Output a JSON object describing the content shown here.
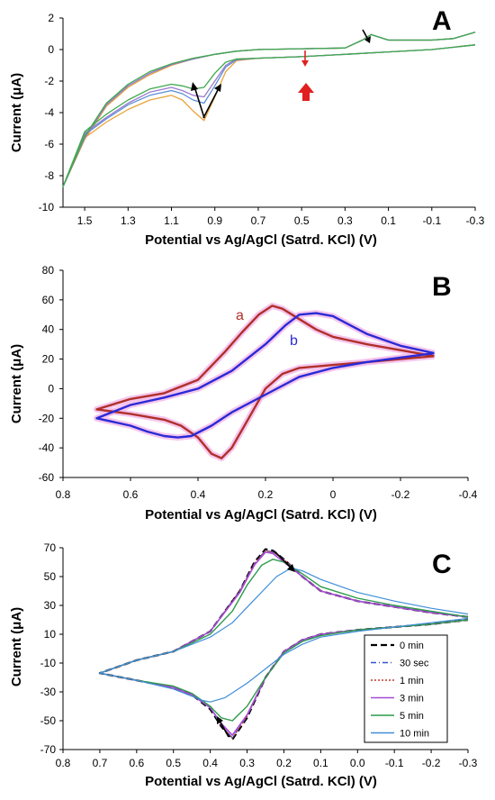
{
  "chart_data": [
    {
      "panel_label": "A",
      "type": "line",
      "xlabel": "Potential vs Ag/AgCl (Satrd. KCl) (V)",
      "ylabel": "Current (μA)",
      "xlim": [
        1.6,
        -0.3
      ],
      "ylim": [
        -10,
        2
      ],
      "x_ticks": [
        1.5,
        1.3,
        1.1,
        0.9,
        0.7,
        0.5,
        0.3,
        0.1,
        -0.1,
        -0.3
      ],
      "x_tick_labels": [
        "1.5",
        "1.3",
        "1.1",
        "0.9",
        "0.7",
        "0.5",
        "0.3",
        "0.1",
        "-0.1",
        "-0.3"
      ],
      "y_ticks": [
        -10,
        -8,
        -6,
        -4,
        -2,
        0,
        2
      ],
      "y_tick_labels": [
        "-10",
        "-8",
        "-6",
        "-4",
        "-2",
        "0",
        "2"
      ],
      "colors": [
        "#e8a33a",
        "#5b8fd6",
        "#9b7ad0",
        "#3fa94b",
        "#6f9c3a"
      ],
      "series": [
        {
          "x": [
            -0.3,
            -0.1,
            0.1,
            0.3,
            0.5,
            0.7,
            0.8,
            0.85,
            0.9,
            0.95,
            1.0,
            1.05,
            1.1,
            1.2,
            1.3,
            1.4,
            1.5,
            1.6,
            1.5,
            1.4,
            1.3,
            1.2,
            1.1,
            1.0,
            0.9,
            0.8,
            0.7,
            0.5,
            0.3,
            0.22,
            0.18,
            0.1,
            -0.1,
            -0.2,
            -0.3
          ],
          "y": [
            0.3,
            0.0,
            -0.15,
            -0.3,
            -0.45,
            -0.55,
            -0.7,
            -1.4,
            -3.0,
            -4.5,
            -3.9,
            -3.2,
            -2.9,
            -3.2,
            -3.8,
            -4.6,
            -5.6,
            -8.7,
            -5.7,
            -3.6,
            -2.4,
            -1.6,
            -1.0,
            -0.6,
            -0.3,
            -0.1,
            0.0,
            0.05,
            0.1,
            0.6,
            0.95,
            0.6,
            0.6,
            0.7,
            1.1
          ]
        },
        {
          "x": [
            -0.3,
            -0.1,
            0.1,
            0.3,
            0.5,
            0.7,
            0.8,
            0.85,
            0.9,
            0.95,
            1.0,
            1.05,
            1.1,
            1.2,
            1.3,
            1.4,
            1.5,
            1.6,
            1.5,
            1.4,
            1.3,
            1.2,
            1.1,
            1.0,
            0.9,
            0.8,
            0.7,
            0.5,
            0.3,
            0.22,
            0.18,
            0.1,
            -0.1,
            -0.2,
            -0.3
          ],
          "y": [
            0.3,
            0.0,
            -0.15,
            -0.3,
            -0.45,
            -0.55,
            -0.65,
            -1.1,
            -2.3,
            -3.4,
            -3.2,
            -2.8,
            -2.6,
            -2.9,
            -3.5,
            -4.4,
            -5.4,
            -8.7,
            -5.6,
            -3.5,
            -2.3,
            -1.5,
            -0.95,
            -0.6,
            -0.3,
            -0.1,
            0.0,
            0.05,
            0.1,
            0.6,
            0.95,
            0.6,
            0.6,
            0.7,
            1.1
          ]
        },
        {
          "x": [
            -0.3,
            -0.1,
            0.1,
            0.3,
            0.5,
            0.7,
            0.8,
            0.85,
            0.9,
            0.95,
            1.0,
            1.05,
            1.1,
            1.2,
            1.3,
            1.4,
            1.5,
            1.6,
            1.5,
            1.4,
            1.3,
            1.2,
            1.1,
            1.0,
            0.9,
            0.8,
            0.7,
            0.5,
            0.3,
            0.22,
            0.18,
            0.1,
            -0.1,
            -0.2,
            -0.3
          ],
          "y": [
            0.3,
            0.0,
            -0.15,
            -0.3,
            -0.45,
            -0.55,
            -0.6,
            -1.0,
            -2.0,
            -3.0,
            -2.9,
            -2.6,
            -2.4,
            -2.7,
            -3.4,
            -4.3,
            -5.3,
            -8.7,
            -5.6,
            -3.5,
            -2.3,
            -1.5,
            -0.95,
            -0.6,
            -0.3,
            -0.1,
            0.0,
            0.05,
            0.1,
            0.6,
            0.95,
            0.6,
            0.6,
            0.7,
            1.1
          ]
        },
        {
          "x": [
            -0.3,
            -0.1,
            0.1,
            0.3,
            0.5,
            0.7,
            0.8,
            0.85,
            0.9,
            0.95,
            1.0,
            1.05,
            1.1,
            1.2,
            1.3,
            1.4,
            1.5,
            1.6,
            1.5,
            1.4,
            1.3,
            1.2,
            1.1,
            1.0,
            0.9,
            0.8,
            0.7,
            0.5,
            0.3,
            0.22,
            0.18,
            0.1,
            -0.1,
            -0.2,
            -0.3
          ],
          "y": [
            0.3,
            0.0,
            -0.15,
            -0.3,
            -0.45,
            -0.55,
            -0.6,
            -0.8,
            -1.5,
            -2.4,
            -2.5,
            -2.3,
            -2.2,
            -2.5,
            -3.2,
            -4.1,
            -5.2,
            -8.7,
            -5.5,
            -3.4,
            -2.2,
            -1.4,
            -0.9,
            -0.55,
            -0.3,
            -0.1,
            0.0,
            0.05,
            0.1,
            0.6,
            0.95,
            0.6,
            0.6,
            0.7,
            1.1
          ]
        }
      ]
    },
    {
      "panel_label": "B",
      "type": "line",
      "xlabel": "Potential vs Ag/AgCl (Satrd. KCl) (V)",
      "ylabel": "Current (μA)",
      "xlim": [
        0.8,
        -0.4
      ],
      "ylim": [
        -60,
        80
      ],
      "x_ticks": [
        0.8,
        0.6,
        0.4,
        0.2,
        0,
        -0.2,
        -0.4
      ],
      "x_tick_labels": [
        "0.8",
        "0.6",
        "0.4",
        "0.2",
        "0",
        "-0.2",
        "-0.4"
      ],
      "y_ticks": [
        -60,
        -40,
        -20,
        0,
        20,
        40,
        60,
        80
      ],
      "y_tick_labels": [
        "-60",
        "-40",
        "-20",
        "0",
        "20",
        "40",
        "60",
        "80"
      ],
      "colors": [
        "#b0302a",
        "#2a2ad6"
      ],
      "halo": "#f3b8e8",
      "series": [
        {
          "name": "a",
          "x": [
            -0.3,
            -0.2,
            -0.1,
            0.0,
            0.05,
            0.1,
            0.15,
            0.18,
            0.22,
            0.27,
            0.32,
            0.4,
            0.5,
            0.6,
            0.7,
            0.6,
            0.5,
            0.45,
            0.4,
            0.36,
            0.33,
            0.3,
            0.25,
            0.2,
            0.15,
            0.1,
            0.0,
            -0.1,
            -0.2,
            -0.3
          ],
          "y": [
            22,
            26,
            30,
            35,
            40,
            47,
            54,
            56,
            50,
            38,
            25,
            6,
            -3,
            -7,
            -14,
            -17,
            -21,
            -25,
            -33,
            -44,
            -47,
            -40,
            -20,
            0,
            10,
            14,
            16,
            18,
            20,
            22
          ]
        },
        {
          "name": "b",
          "x": [
            -0.3,
            -0.2,
            -0.1,
            -0.05,
            0.0,
            0.05,
            0.1,
            0.14,
            0.2,
            0.3,
            0.4,
            0.5,
            0.6,
            0.7,
            0.6,
            0.55,
            0.5,
            0.46,
            0.42,
            0.36,
            0.3,
            0.2,
            0.1,
            0.0,
            -0.1,
            -0.2,
            -0.3
          ],
          "y": [
            24,
            29,
            37,
            43,
            49,
            51,
            50,
            43,
            30,
            12,
            0,
            -6,
            -11,
            -20,
            -25,
            -29,
            -32,
            -33,
            -32,
            -25,
            -16,
            -4,
            8,
            14,
            18,
            21,
            24
          ]
        }
      ]
    },
    {
      "panel_label": "C",
      "type": "line",
      "xlabel": "Potential vs Ag/AgCl (Satrd. KCl) (V)",
      "ylabel": "Current (μA)",
      "xlim": [
        0.8,
        -0.3
      ],
      "ylim": [
        -70,
        70
      ],
      "x_ticks": [
        0.8,
        0.7,
        0.6,
        0.5,
        0.4,
        0.3,
        0.2,
        0.1,
        0.0,
        -0.1,
        -0.2,
        -0.3
      ],
      "x_tick_labels": [
        "0.8",
        "0.7",
        "0.6",
        "0.5",
        "0.4",
        "0.3",
        "0.2",
        "0.1",
        "0.0",
        "-0.1",
        "-0.2",
        "-0.3"
      ],
      "y_ticks": [
        -70,
        -50,
        -30,
        -10,
        10,
        30,
        50,
        70
      ],
      "y_tick_labels": [
        "-70",
        "-50",
        "-30",
        "-10",
        "10",
        "30",
        "50",
        "70"
      ],
      "legend_position": "bottom-right",
      "series": [
        {
          "name": "0 min",
          "color": "#000000",
          "dash": "7,4",
          "width": 2.2,
          "x": [
            -0.3,
            -0.2,
            -0.1,
            0.0,
            0.1,
            0.15,
            0.2,
            0.23,
            0.25,
            0.28,
            0.32,
            0.4,
            0.5,
            0.6,
            0.7,
            0.6,
            0.5,
            0.45,
            0.4,
            0.37,
            0.34,
            0.3,
            0.25,
            0.2,
            0.15,
            0.1,
            0.0,
            -0.1,
            -0.2,
            -0.3
          ],
          "y": [
            22,
            25,
            29,
            33,
            40,
            50,
            62,
            68,
            69,
            60,
            40,
            12,
            -2,
            -8,
            -17,
            -22,
            -27,
            -32,
            -42,
            -54,
            -63,
            -48,
            -20,
            -2,
            6,
            10,
            13,
            15,
            17,
            20
          ]
        },
        {
          "name": "30 sec",
          "color": "#3355cc",
          "dash": "6,3,1,3",
          "width": 1.4,
          "x": [
            -0.3,
            -0.2,
            -0.1,
            0.0,
            0.1,
            0.15,
            0.2,
            0.23,
            0.25,
            0.28,
            0.32,
            0.4,
            0.5,
            0.6,
            0.7,
            0.6,
            0.5,
            0.45,
            0.4,
            0.37,
            0.34,
            0.3,
            0.25,
            0.2,
            0.15,
            0.1,
            0.0,
            -0.1,
            -0.2,
            -0.3
          ],
          "y": [
            22,
            25,
            29,
            33,
            40,
            50,
            62,
            67,
            68,
            59,
            40,
            12,
            -2,
            -8,
            -17,
            -22,
            -27,
            -32,
            -41,
            -53,
            -62,
            -47,
            -20,
            -2,
            6,
            10,
            13,
            15,
            17,
            20
          ]
        },
        {
          "name": "1 min",
          "color": "#c0392b",
          "dash": "2,2",
          "width": 1.2,
          "x": [
            -0.3,
            -0.2,
            -0.1,
            0.0,
            0.1,
            0.15,
            0.2,
            0.23,
            0.25,
            0.28,
            0.32,
            0.4,
            0.5,
            0.6,
            0.7,
            0.6,
            0.5,
            0.45,
            0.4,
            0.37,
            0.34,
            0.3,
            0.25,
            0.2,
            0.15,
            0.1,
            0.0,
            -0.1,
            -0.2,
            -0.3
          ],
          "y": [
            22,
            25,
            29,
            33,
            40,
            50,
            62,
            67,
            68,
            59,
            40,
            12,
            -2,
            -8,
            -17,
            -22,
            -27,
            -32,
            -41,
            -53,
            -62,
            -47,
            -20,
            -2,
            6,
            10,
            13,
            15,
            17,
            20
          ]
        },
        {
          "name": "3 min",
          "color": "#a64ad6",
          "dash": "",
          "width": 1.6,
          "x": [
            -0.3,
            -0.2,
            -0.1,
            0.0,
            0.1,
            0.15,
            0.2,
            0.23,
            0.25,
            0.28,
            0.32,
            0.4,
            0.5,
            0.6,
            0.7,
            0.6,
            0.5,
            0.45,
            0.4,
            0.37,
            0.34,
            0.3,
            0.25,
            0.2,
            0.15,
            0.1,
            0.0,
            -0.1,
            -0.2,
            -0.3
          ],
          "y": [
            22,
            25,
            29,
            33,
            40,
            50,
            60,
            66,
            67,
            58,
            39,
            12,
            -2,
            -8,
            -17,
            -22,
            -27,
            -32,
            -41,
            -52,
            -60,
            -46,
            -20,
            -2,
            6,
            10,
            13,
            15,
            17,
            20
          ]
        },
        {
          "name": "5 min",
          "color": "#2e9c4a",
          "dash": "",
          "width": 1.4,
          "x": [
            -0.3,
            -0.2,
            -0.1,
            0.0,
            0.1,
            0.15,
            0.2,
            0.23,
            0.26,
            0.3,
            0.34,
            0.4,
            0.5,
            0.6,
            0.7,
            0.6,
            0.5,
            0.45,
            0.4,
            0.37,
            0.34,
            0.3,
            0.25,
            0.2,
            0.15,
            0.1,
            0.0,
            -0.1,
            -0.2,
            -0.3
          ],
          "y": [
            22,
            26,
            30,
            35,
            43,
            52,
            60,
            62,
            58,
            44,
            26,
            10,
            -2,
            -8,
            -17,
            -22,
            -26,
            -31,
            -40,
            -48,
            -50,
            -40,
            -20,
            -3,
            5,
            9,
            13,
            15,
            17,
            20
          ]
        },
        {
          "name": "10 min",
          "color": "#3f8ed8",
          "dash": "",
          "width": 1.2,
          "x": [
            -0.3,
            -0.2,
            -0.1,
            0.0,
            0.1,
            0.15,
            0.18,
            0.22,
            0.28,
            0.34,
            0.4,
            0.5,
            0.6,
            0.7,
            0.6,
            0.5,
            0.45,
            0.42,
            0.4,
            0.36,
            0.3,
            0.25,
            0.2,
            0.15,
            0.1,
            0.0,
            -0.1,
            -0.2,
            -0.3
          ],
          "y": [
            24,
            28,
            33,
            39,
            48,
            54,
            56,
            50,
            34,
            18,
            8,
            -2,
            -8,
            -17,
            -22,
            -28,
            -33,
            -36,
            -37,
            -34,
            -24,
            -14,
            -4,
            3,
            8,
            12,
            15,
            18,
            21
          ]
        }
      ]
    }
  ],
  "annotations": {
    "panel_b_label_a": "a",
    "panel_b_label_b": "b"
  }
}
